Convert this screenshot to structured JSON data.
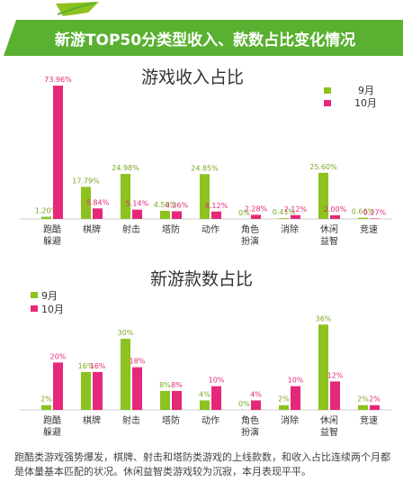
{
  "banner": {
    "title": "新游TOP50分类型收入、款数占比变化情况"
  },
  "colors": {
    "sep": "#8dc21f",
    "oct": "#e6287a",
    "green": "#5ab030",
    "title_text": "#333333",
    "label_green": "#7aa820",
    "label_pink": "#e6287a"
  },
  "chart_data": [
    {
      "type": "bar",
      "title": "游戏收入占比",
      "categories": [
        [
          "跑酷",
          "躲避"
        ],
        [
          "棋牌"
        ],
        [
          "射击"
        ],
        [
          "塔防"
        ],
        [
          "动作"
        ],
        [
          "角色",
          "扮演"
        ],
        [
          "消除"
        ],
        [
          "休闲",
          "益智"
        ],
        [
          "竞速"
        ]
      ],
      "series": [
        {
          "name": "9月",
          "values": [
            1.2,
            17.79,
            24.98,
            4.5,
            24.85,
            0,
            0.41,
            25.6,
            0.66
          ],
          "labels": [
            "1.20%",
            "17.79%",
            "24.98%",
            "4.50%",
            "24.85%",
            "0%",
            "0.41%",
            "25.60%",
            "0.66%"
          ]
        },
        {
          "name": "10月",
          "values": [
            73.96,
            5.84,
            5.14,
            4.26,
            4.12,
            2.28,
            2.12,
            2.0,
            0.27
          ],
          "labels": [
            "73.96%",
            "5.84%",
            "5.14%",
            "4.26%",
            "4.12%",
            "2.28%",
            "2.12%",
            "2.00%",
            "0.27%"
          ]
        }
      ],
      "ylim": [
        0,
        76
      ],
      "legend": "top-right"
    },
    {
      "type": "bar",
      "title": "新游款数占比",
      "categories": [
        [
          "跑酷",
          "躲避"
        ],
        [
          "棋牌"
        ],
        [
          "射击"
        ],
        [
          "塔防"
        ],
        [
          "动作"
        ],
        [
          "角色",
          "扮演"
        ],
        [
          "消除"
        ],
        [
          "休闲",
          "益智"
        ],
        [
          "竞速"
        ]
      ],
      "series": [
        {
          "name": "9月",
          "values": [
            2,
            16,
            30,
            8,
            4,
            0,
            2,
            36,
            2
          ],
          "labels": [
            "2%",
            "16%",
            "30%",
            "8%",
            "4%",
            "0%",
            "2%",
            "36%",
            "2%"
          ]
        },
        {
          "name": "10月",
          "values": [
            20,
            16,
            18,
            8,
            10,
            4,
            10,
            12,
            2
          ],
          "labels": [
            "20%",
            "16%",
            "18%",
            "8%",
            "10%",
            "4%",
            "10%",
            "12%",
            "2%"
          ]
        }
      ],
      "ylim": [
        0,
        38
      ],
      "legend": "left"
    }
  ],
  "footer": {
    "text": "跑酷类游戏强势爆发，棋牌、射击和塔防类游戏的上线款数，和收入占比连续两个月都是体量基本匹配的状况。休闲益智类游戏较为沉寂，本月表现平平。"
  }
}
